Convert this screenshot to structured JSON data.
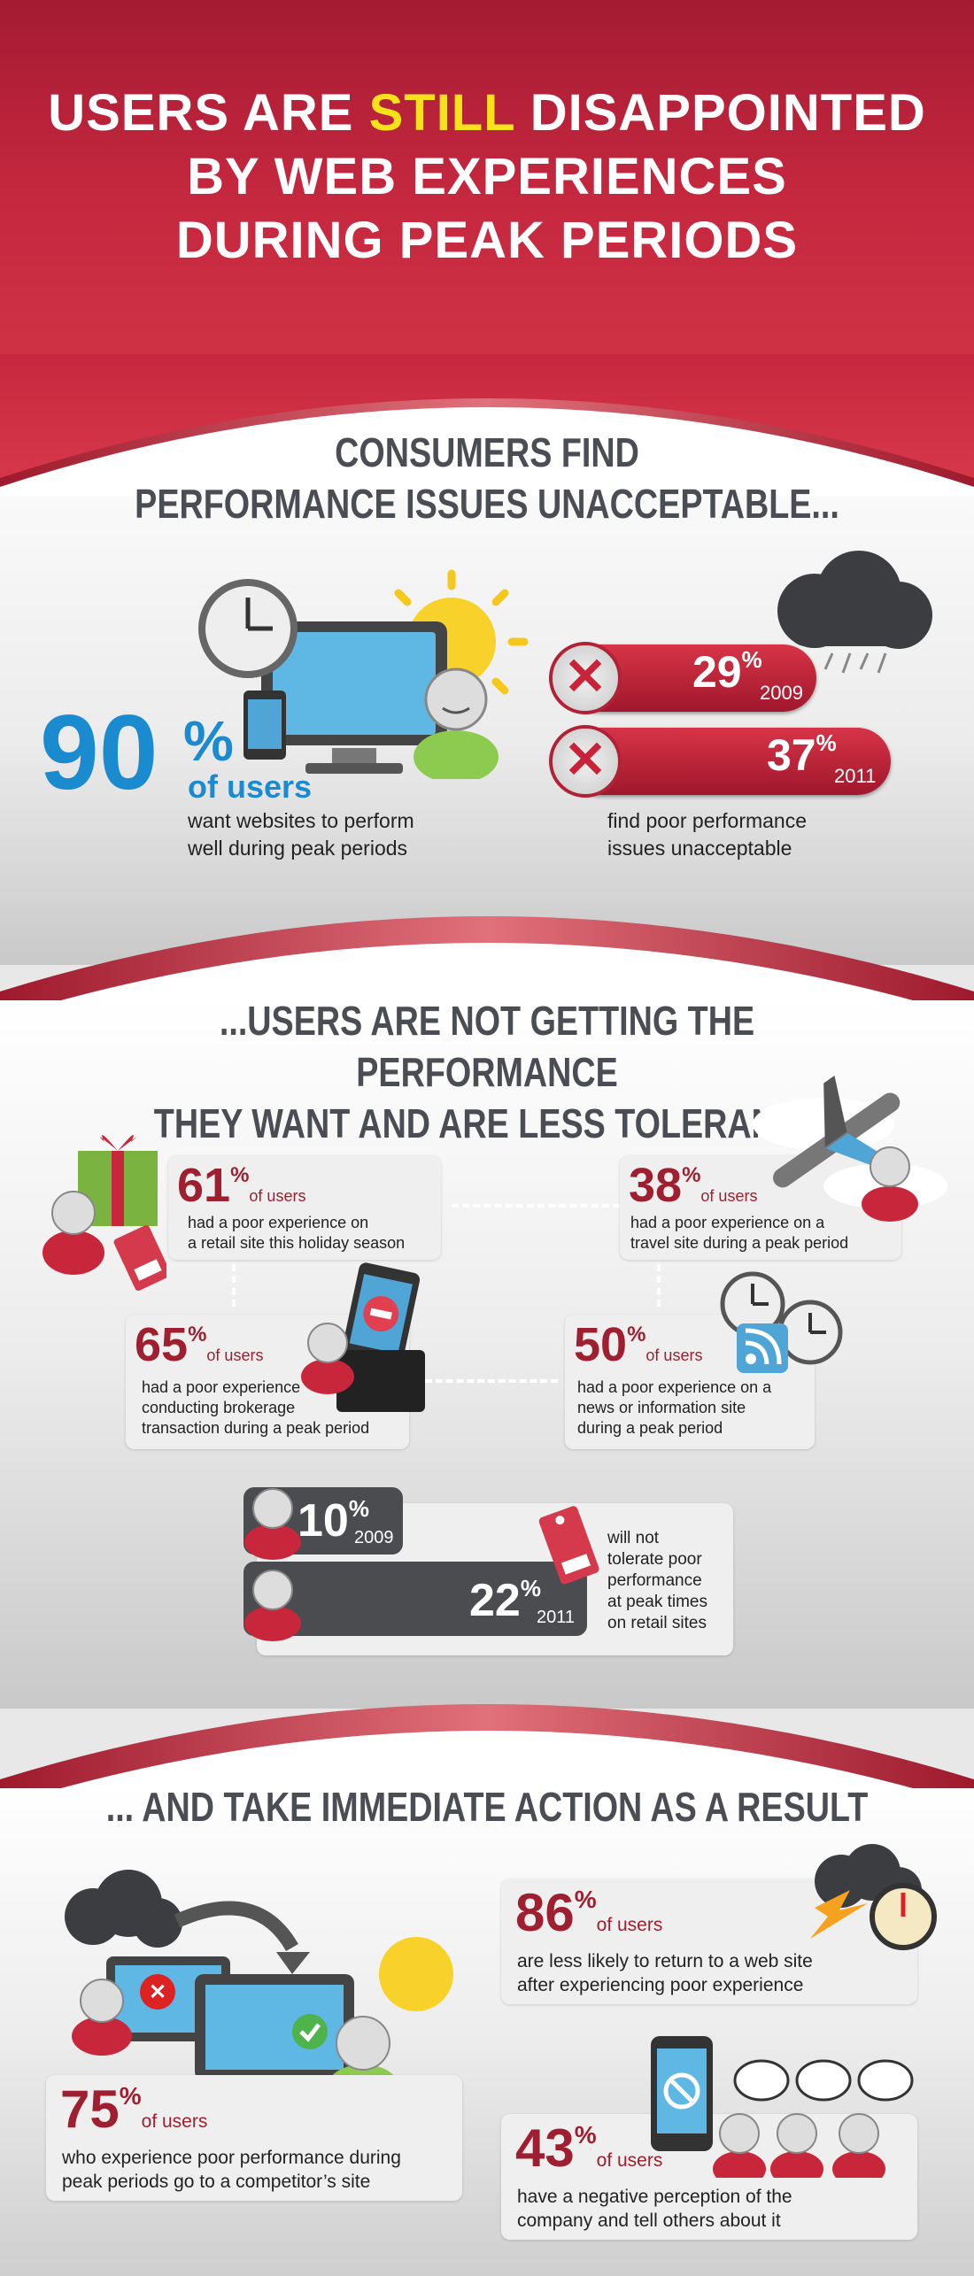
{
  "header": {
    "title_line1_a": "USERS ARE ",
    "title_line1_hl": "STILL",
    "title_line1_b": " DISAPPOINTED",
    "title_line2": "BY WEB EXPERIENCES",
    "title_line3": "DURING PEAK PERIODS"
  },
  "section1": {
    "title_line1": "CONSUMERS FIND",
    "title_line2": "PERFORMANCE ISSUES UNACCEPTABLE...",
    "stat_value": "90",
    "stat_pct": "%",
    "stat_label": "of users",
    "stat_caption_1": "want websites to perform",
    "stat_caption_2": "well during peak periods",
    "pill1_value": "29",
    "pill1_pct": "%",
    "pill1_year": "2009",
    "pill2_value": "37",
    "pill2_pct": "%",
    "pill2_year": "2011",
    "pills_caption_1": "find poor performance",
    "pills_caption_2": "issues unacceptable"
  },
  "section2": {
    "title_line1": "...USERS ARE NOT GETTING THE PERFORMANCE",
    "title_line2": "THEY WANT AND ARE LESS TOLERANT...",
    "card_retail": {
      "value": "61",
      "pct": "%",
      "ofu": "of users",
      "line1": "had a poor experience on",
      "line2": "a retail site this holiday season"
    },
    "card_travel": {
      "value": "38",
      "pct": "%",
      "ofu": "of users",
      "line1": "had a poor experience on a",
      "line2": "travel site during a peak period"
    },
    "card_broker": {
      "value": "65",
      "pct": "%",
      "ofu": "of users",
      "line1": "had a poor experience",
      "line2": "conducting brokerage",
      "line3": "transaction during a peak period"
    },
    "card_news": {
      "value": "50",
      "pct": "%",
      "ofu": "of users",
      "line1": "had a poor experience on a",
      "line2": "news or information site",
      "line3": "during a peak period"
    },
    "tol1_value": "10",
    "tol1_pct": "%",
    "tol1_year": "2009",
    "tol2_value": "22",
    "tol2_pct": "%",
    "tol2_year": "2011",
    "tol_caption": [
      "will not",
      "tolerate poor",
      "performance",
      "at peak times",
      "on retail sites"
    ]
  },
  "section3": {
    "title": "... AND TAKE IMMEDIATE ACTION AS A RESULT",
    "card_return": {
      "value": "86",
      "pct": "%",
      "ofu": "of users",
      "line1": "are less likely to return to a web site",
      "line2": "after experiencing poor experience"
    },
    "card_competitor": {
      "value": "75",
      "pct": "%",
      "ofu": "of users",
      "line1": "who experience poor performance during",
      "line2": "peak periods go to a competitor’s site"
    },
    "card_perception": {
      "value": "43",
      "pct": "%",
      "ofu": "of users",
      "line1": "have a negative perception of the",
      "line2": "company and tell others about it"
    }
  },
  "colors": {
    "brand_red": "#a51b32",
    "accent_blue": "#1a8bcf",
    "accent_yellow": "#f6e21a",
    "dark_gray": "#4a4e54"
  }
}
